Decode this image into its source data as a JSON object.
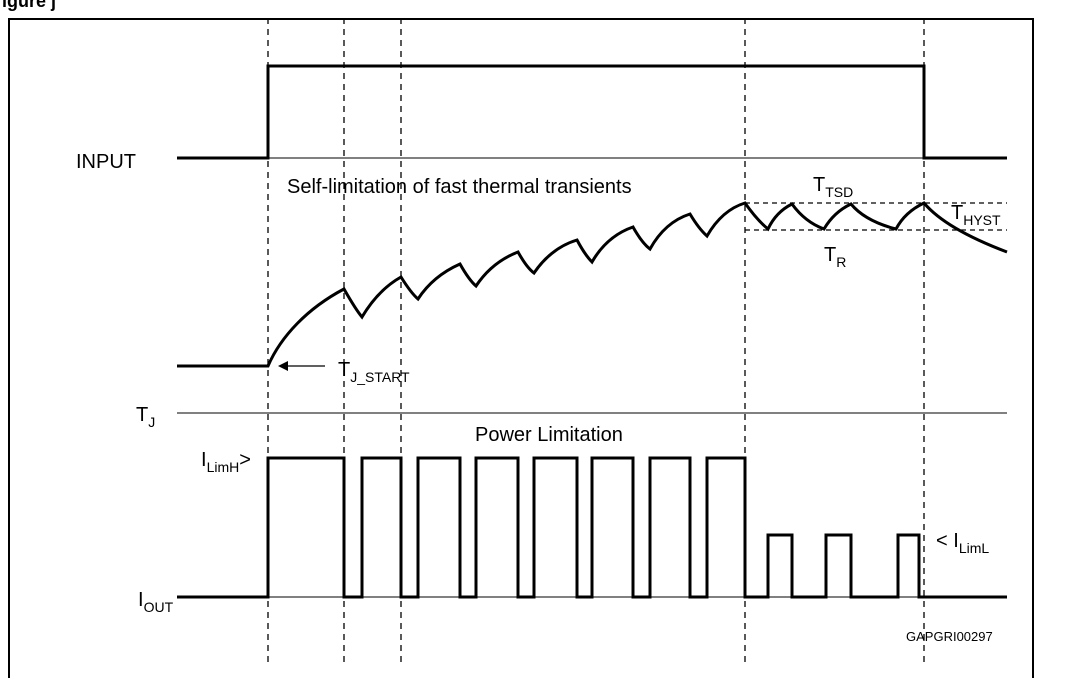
{
  "figure": {
    "header_fragment": "igure     j",
    "code": "GAPGRI00297"
  },
  "signals": {
    "input": "INPUT",
    "tj": {
      "main": "T",
      "sub": "J"
    },
    "iout": {
      "main": "I",
      "sub": "OUT"
    }
  },
  "annotations": {
    "self_limitation": "Self-limitation of  fast thermal transients",
    "tj_start": {
      "main": "T",
      "sub": "J_START"
    },
    "ttsd": {
      "main": "T",
      "sub": "TSD"
    },
    "thyst": {
      "main": "T",
      "sub": "HYST"
    },
    "tr": {
      "main": "T",
      "sub": "R"
    },
    "power_limitation": "Power Limitation",
    "ilimh": {
      "main": "I",
      "sub": "LimH",
      "suffix": ">"
    },
    "iliml": {
      "prefix": "< ",
      "main": "I",
      "sub": "LimL"
    }
  }
}
